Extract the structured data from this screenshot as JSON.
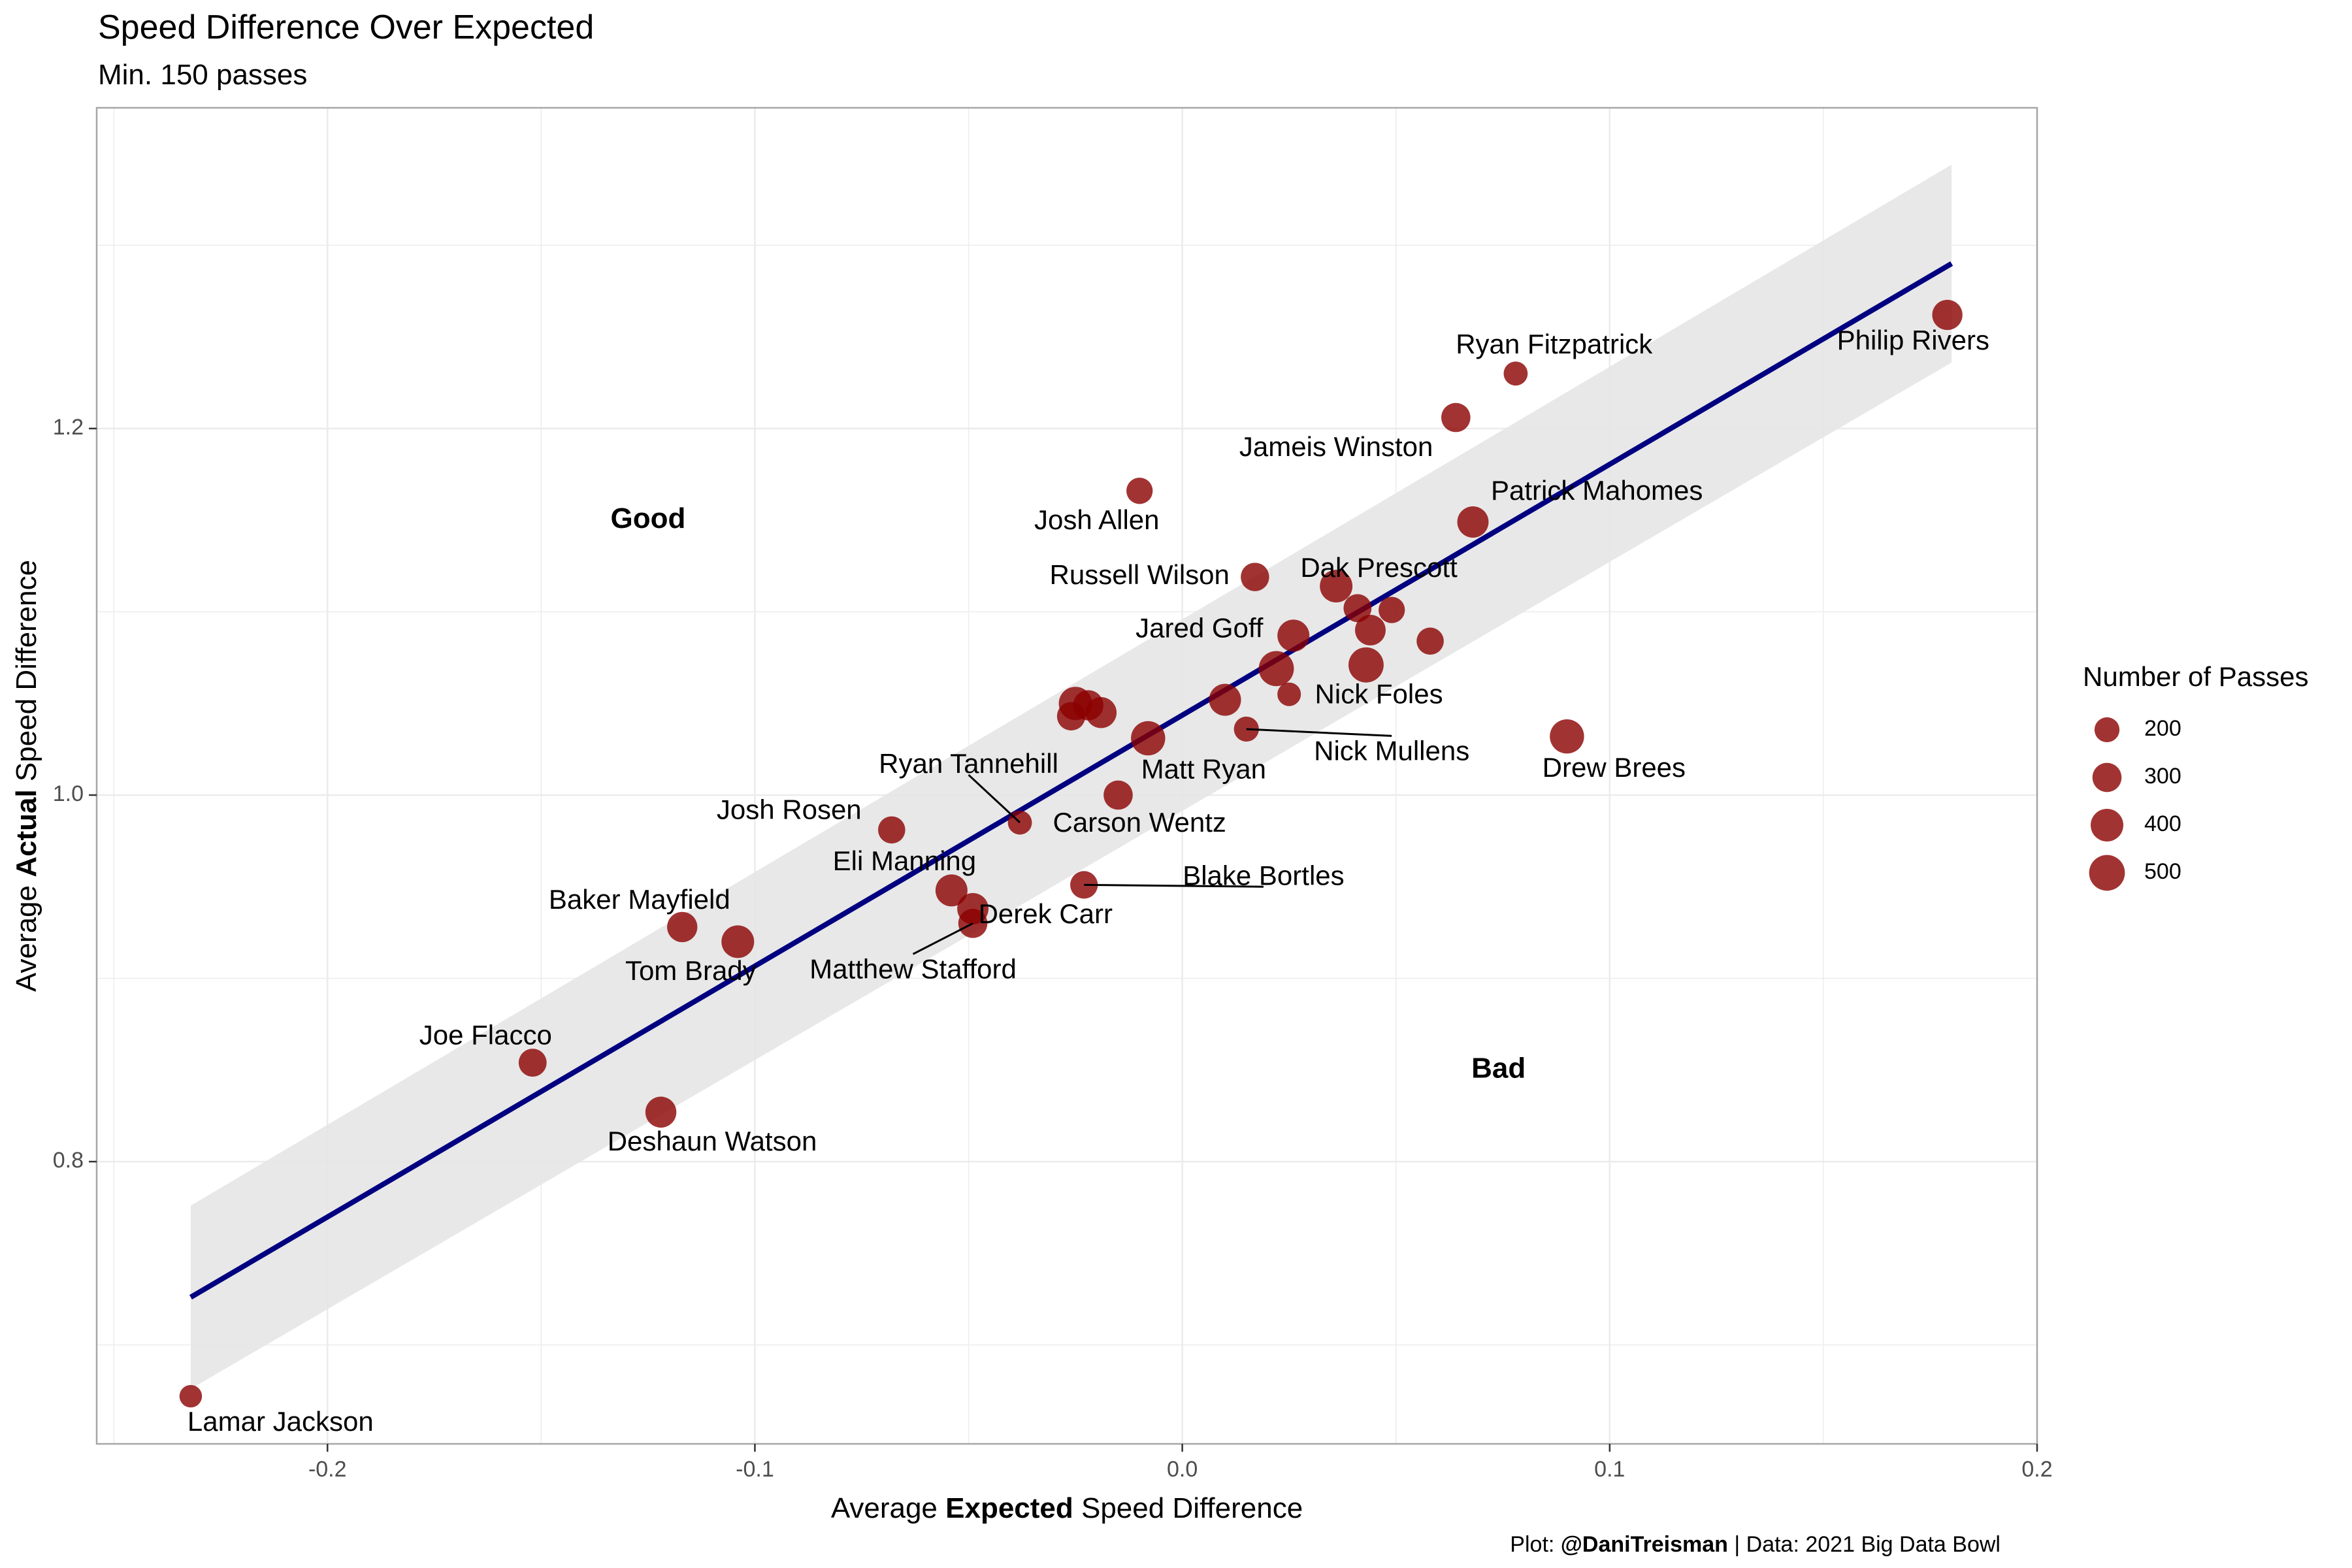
{
  "title": "Speed Difference Over Expected",
  "subtitle": "Min. 150 passes",
  "caption": {
    "prefix": "Plot: ",
    "handle": "@DaniTreisman",
    "suffix": " | Data: 2021 Big Data Bowl"
  },
  "colors": {
    "point": "#8B0000",
    "line": "#000080",
    "band": "#e6e6e6",
    "grid": "#ebebeb",
    "border": "#a6a6a6"
  },
  "chart_data": {
    "type": "scatter",
    "xlabel": {
      "pre": "Average ",
      "bold": "Expected",
      "post": " Speed Difference"
    },
    "ylabel": {
      "pre": "Average ",
      "bold": "Actual",
      "post": " Speed Difference"
    },
    "xlim": [
      -0.254,
      0.2
    ],
    "ylim": [
      0.646,
      1.375
    ],
    "xticks": [
      -0.2,
      -0.1,
      0.0,
      0.1,
      0.2
    ],
    "xtick_labels": [
      "-0.2",
      "-0.1",
      "0.0",
      "0.1",
      "0.2"
    ],
    "yticks": [
      0.8,
      1.0,
      1.2
    ],
    "ytick_labels": [
      "0.8",
      "1.0",
      "1.2"
    ],
    "grid": true,
    "regions": [
      {
        "label": "Good",
        "x": -0.125,
        "y": 1.15
      },
      {
        "label": "Bad",
        "x": 0.074,
        "y": 0.85
      }
    ],
    "trend": {
      "x": [
        -0.232,
        0.18
      ],
      "y": [
        0.726,
        1.29
      ],
      "band_lower": [
        0.676,
        1.236
      ],
      "band_upper": [
        0.776,
        1.344
      ]
    },
    "legend": {
      "title": "Number of Passes",
      "placement": "right",
      "sizes": [
        200,
        300,
        400,
        500
      ],
      "labels": [
        "200",
        "300",
        "400",
        "500"
      ]
    },
    "points": [
      {
        "name": "Lamar Jackson",
        "x": -0.232,
        "y": 0.672,
        "n": 150,
        "lx": -0.211,
        "ly": 0.657,
        "leader": false
      },
      {
        "name": "Deshaun Watson",
        "x": -0.122,
        "y": 0.827,
        "n": 350,
        "lx": -0.11,
        "ly": 0.81,
        "leader": false
      },
      {
        "name": "Joe Flacco",
        "x": -0.152,
        "y": 0.854,
        "n": 270,
        "lx": -0.163,
        "ly": 0.868,
        "leader": false
      },
      {
        "name": "Baker Mayfield",
        "x": -0.117,
        "y": 0.928,
        "n": 330,
        "lx": -0.127,
        "ly": 0.942,
        "leader": false
      },
      {
        "name": "Tom Brady",
        "x": -0.104,
        "y": 0.92,
        "n": 400,
        "lx": -0.115,
        "ly": 0.903,
        "leader": false
      },
      {
        "name": "Josh Rosen",
        "x": -0.068,
        "y": 0.981,
        "n": 250,
        "lx": -0.092,
        "ly": 0.991,
        "leader": false
      },
      {
        "name": "Eli Manning",
        "x": -0.054,
        "y": 0.948,
        "n": 380,
        "lx": -0.065,
        "ly": 0.963,
        "leader": false
      },
      {
        "name": "Derek Carr",
        "x": -0.049,
        "y": 0.938,
        "n": 360,
        "lx": -0.032,
        "ly": 0.934,
        "leader": false
      },
      {
        "name": "Matthew Stafford",
        "x": -0.049,
        "y": 0.93,
        "n": 300,
        "lx": -0.063,
        "ly": 0.904,
        "leader": true
      },
      {
        "name": "Ryan Tannehill",
        "x": -0.038,
        "y": 0.985,
        "n": 180,
        "lx": -0.05,
        "ly": 1.016,
        "leader": true
      },
      {
        "name": "Blake Bortles",
        "x": -0.023,
        "y": 0.951,
        "n": 260,
        "lx": 0.019,
        "ly": 0.955,
        "leader": true
      },
      {
        "name": "Carson Wentz",
        "x": -0.015,
        "y": 1.0,
        "n": 300,
        "lx": -0.01,
        "ly": 0.984,
        "leader": false
      },
      {
        "name": "Matt Ryan",
        "x": -0.008,
        "y": 1.031,
        "n": 450,
        "lx": 0.005,
        "ly": 1.013,
        "leader": false
      },
      {
        "name": "",
        "x": -0.026,
        "y": 1.043,
        "n": 280,
        "lx": 0,
        "ly": 0,
        "leader": false
      },
      {
        "name": "",
        "x": -0.025,
        "y": 1.05,
        "n": 420,
        "lx": 0,
        "ly": 0,
        "leader": false
      },
      {
        "name": "",
        "x": -0.022,
        "y": 1.049,
        "n": 330,
        "lx": 0,
        "ly": 0,
        "leader": false
      },
      {
        "name": "",
        "x": -0.019,
        "y": 1.045,
        "n": 350,
        "lx": 0,
        "ly": 0,
        "leader": false
      },
      {
        "name": "",
        "x": 0.01,
        "y": 1.052,
        "n": 380,
        "lx": 0,
        "ly": 0,
        "leader": false
      },
      {
        "name": "",
        "x": 0.022,
        "y": 1.069,
        "n": 480,
        "lx": 0,
        "ly": 0,
        "leader": false
      },
      {
        "name": "Nick Foles",
        "x": 0.025,
        "y": 1.055,
        "n": 170,
        "lx": 0.046,
        "ly": 1.054,
        "leader": false
      },
      {
        "name": "Nick Mullens",
        "x": 0.015,
        "y": 1.036,
        "n": 200,
        "lx": 0.049,
        "ly": 1.023,
        "leader": true
      },
      {
        "name": "Jared Goff",
        "x": 0.026,
        "y": 1.087,
        "n": 380,
        "lx": 0.004,
        "ly": 1.09,
        "leader": false
      },
      {
        "name": "",
        "x": 0.043,
        "y": 1.071,
        "n": 480,
        "lx": 0,
        "ly": 0,
        "leader": false
      },
      {
        "name": "",
        "x": 0.044,
        "y": 1.09,
        "n": 340,
        "lx": 0,
        "ly": 0,
        "leader": false
      },
      {
        "name": "",
        "x": 0.058,
        "y": 1.084,
        "n": 250,
        "lx": 0,
        "ly": 0,
        "leader": false
      },
      {
        "name": "",
        "x": 0.041,
        "y": 1.102,
        "n": 270,
        "lx": 0,
        "ly": 0,
        "leader": false
      },
      {
        "name": "",
        "x": 0.049,
        "y": 1.101,
        "n": 230,
        "lx": 0,
        "ly": 0,
        "leader": false
      },
      {
        "name": "Dak Prescott",
        "x": 0.036,
        "y": 1.114,
        "n": 400,
        "lx": 0.046,
        "ly": 1.123,
        "leader": false
      },
      {
        "name": "Russell Wilson",
        "x": 0.017,
        "y": 1.119,
        "n": 280,
        "lx": -0.01,
        "ly": 1.119,
        "leader": false
      },
      {
        "name": "Josh Allen",
        "x": -0.01,
        "y": 1.166,
        "n": 230,
        "lx": -0.02,
        "ly": 1.149,
        "leader": false
      },
      {
        "name": "Patrick Mahomes",
        "x": 0.068,
        "y": 1.149,
        "n": 360,
        "lx": 0.097,
        "ly": 1.165,
        "leader": false
      },
      {
        "name": "Jameis Winston",
        "x": 0.064,
        "y": 1.206,
        "n": 300,
        "lx": 0.036,
        "ly": 1.189,
        "leader": false
      },
      {
        "name": "Ryan Fitzpatrick",
        "x": 0.078,
        "y": 1.23,
        "n": 180,
        "lx": 0.087,
        "ly": 1.245,
        "leader": false
      },
      {
        "name": "Philip Rivers",
        "x": 0.179,
        "y": 1.262,
        "n": 330,
        "lx": 0.171,
        "ly": 1.247,
        "leader": false
      },
      {
        "name": "Drew Brees",
        "x": 0.09,
        "y": 1.032,
        "n": 450,
        "lx": 0.101,
        "ly": 1.014,
        "leader": false
      }
    ]
  }
}
